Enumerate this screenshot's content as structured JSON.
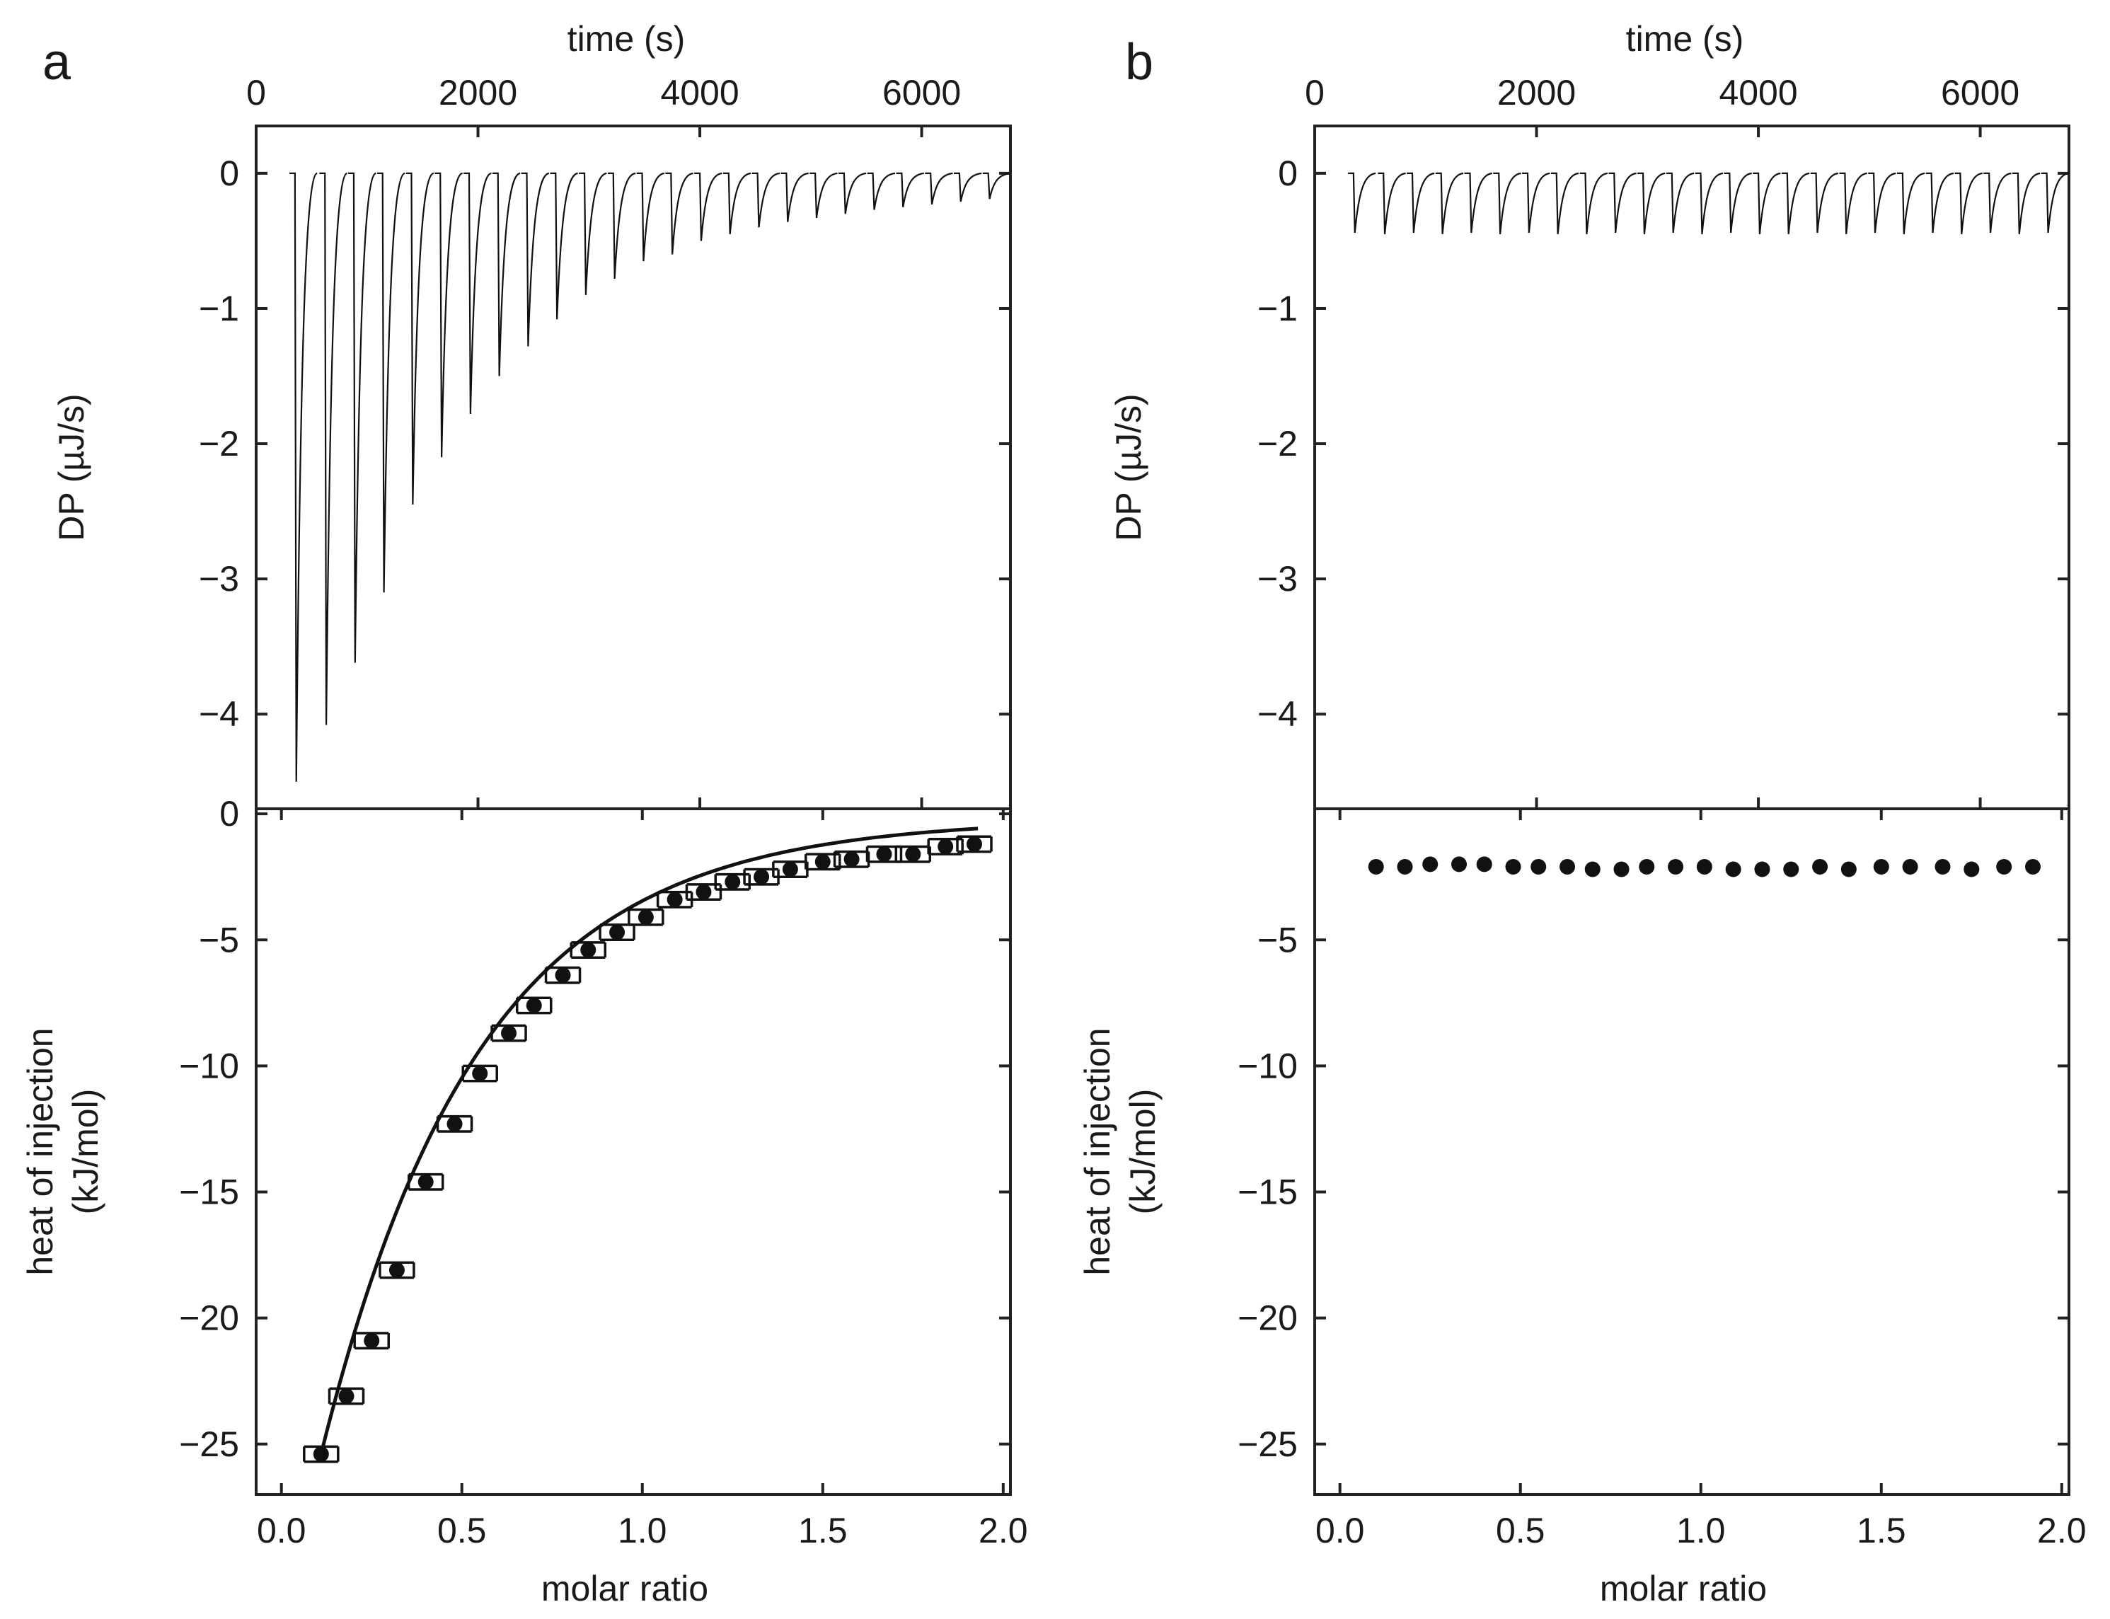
{
  "chart_data": [
    {
      "panel": "a",
      "panel_label": "a",
      "type": "multi-panel",
      "top": {
        "type": "line",
        "xlabel": "time (s)",
        "ylabel": "DP (µJ/s)",
        "xlim": [
          0,
          6800
        ],
        "ylim": [
          -4.7,
          0.35
        ],
        "xticks": [
          "0",
          "2000",
          "4000",
          "6000"
        ],
        "xtick_values": [
          0,
          2000,
          4000,
          6000
        ],
        "yticks": [
          "0",
          "−1",
          "−2",
          "−3",
          "−4"
        ],
        "ytick_values": [
          0,
          -1,
          -2,
          -3,
          -4
        ],
        "injection_times": [
          350,
          620,
          880,
          1140,
          1400,
          1660,
          1920,
          2180,
          2440,
          2700,
          2960,
          3220,
          3480,
          3740,
          4000,
          4260,
          4520,
          4780,
          5040,
          5300,
          5560,
          5820,
          6080,
          6340,
          6600
        ],
        "peak_minima": [
          -4.5,
          -4.08,
          -3.62,
          -3.1,
          -2.45,
          -2.1,
          -1.78,
          -1.5,
          -1.28,
          -1.08,
          -0.9,
          -0.78,
          -0.65,
          -0.6,
          -0.5,
          -0.45,
          -0.4,
          -0.36,
          -0.33,
          -0.3,
          -0.27,
          -0.25,
          -0.23,
          -0.21,
          -0.19
        ]
      },
      "bottom": {
        "type": "scatter",
        "xlabel": "molar ratio",
        "ylabel": "heat of injection",
        "ylabel_units": "(kJ/mol)",
        "xlim": [
          -0.07,
          2.02
        ],
        "ylim": [
          -27,
          0.2
        ],
        "xticks": [
          "0.0",
          "0.5",
          "1.0",
          "1.5",
          "2.0"
        ],
        "xtick_values": [
          0,
          0.5,
          1,
          1.5,
          2
        ],
        "yticks": [
          "0",
          "−5",
          "−10",
          "−15",
          "−20",
          "−25"
        ],
        "ytick_values": [
          0,
          -5,
          -10,
          -15,
          -20,
          -25
        ],
        "x": [
          0.11,
          0.18,
          0.25,
          0.32,
          0.4,
          0.48,
          0.55,
          0.63,
          0.7,
          0.78,
          0.85,
          0.93,
          1.01,
          1.09,
          1.17,
          1.25,
          1.33,
          1.41,
          1.5,
          1.58,
          1.67,
          1.75,
          1.84,
          1.92
        ],
        "y": [
          -25.4,
          -23.1,
          -20.9,
          -18.1,
          -14.6,
          -12.3,
          -10.3,
          -8.7,
          -7.6,
          -6.4,
          -5.4,
          -4.7,
          -4.1,
          -3.4,
          -3.1,
          -2.7,
          -2.5,
          -2.2,
          -1.9,
          -1.8,
          -1.6,
          -1.6,
          -1.3,
          -1.2
        ],
        "error": [
          0.3,
          0.3,
          0.3,
          0.3,
          0.3,
          0.3,
          0.3,
          0.3,
          0.3,
          0.3,
          0.3,
          0.3,
          0.3,
          0.3,
          0.3,
          0.3,
          0.3,
          0.3,
          0.3,
          0.3,
          0.3,
          0.3,
          0.3,
          0.3
        ],
        "fit": {
          "x0": 0.11,
          "x1": 1.93,
          "y0": -25.4,
          "y_inf": -0.2,
          "k": 2.3
        }
      }
    },
    {
      "panel": "b",
      "panel_label": "b",
      "type": "multi-panel",
      "top": {
        "type": "line",
        "xlabel": "time (s)",
        "ylabel": "DP (µJ/s)",
        "xlim": [
          0,
          6800
        ],
        "ylim": [
          -4.7,
          0.35
        ],
        "xticks": [
          "0",
          "2000",
          "4000",
          "6000"
        ],
        "xtick_values": [
          0,
          2000,
          4000,
          6000
        ],
        "yticks": [
          "0",
          "−1",
          "−2",
          "−3",
          "−4"
        ],
        "ytick_values": [
          0,
          -1,
          -2,
          -3,
          -4
        ],
        "injection_times": [
          350,
          620,
          880,
          1140,
          1400,
          1660,
          1920,
          2180,
          2440,
          2700,
          2960,
          3220,
          3480,
          3740,
          4000,
          4260,
          4520,
          4780,
          5040,
          5300,
          5560,
          5820,
          6080,
          6340,
          6600
        ],
        "peak_minima": [
          -0.44,
          -0.45,
          -0.44,
          -0.45,
          -0.44,
          -0.45,
          -0.44,
          -0.45,
          -0.45,
          -0.44,
          -0.45,
          -0.44,
          -0.45,
          -0.44,
          -0.45,
          -0.45,
          -0.44,
          -0.45,
          -0.44,
          -0.45,
          -0.44,
          -0.45,
          -0.44,
          -0.45,
          -0.44
        ]
      },
      "bottom": {
        "type": "scatter",
        "xlabel": "molar ratio",
        "ylabel": "heat of injection",
        "ylabel_units": "(kJ/mol)",
        "xlim": [
          -0.07,
          2.02
        ],
        "ylim": [
          -27,
          0.2
        ],
        "xticks": [
          "0.0",
          "0.5",
          "1.0",
          "1.5",
          "2.0"
        ],
        "xtick_values": [
          0,
          0.5,
          1,
          1.5,
          2
        ],
        "yticks": [
          "−5",
          "−10",
          "−15",
          "−20",
          "−25"
        ],
        "ytick_values": [
          -5,
          -10,
          -15,
          -20,
          -25
        ],
        "x": [
          0.1,
          0.18,
          0.25,
          0.33,
          0.4,
          0.48,
          0.55,
          0.63,
          0.7,
          0.78,
          0.85,
          0.93,
          1.01,
          1.09,
          1.17,
          1.25,
          1.33,
          1.41,
          1.5,
          1.58,
          1.67,
          1.75,
          1.84,
          1.92
        ],
        "y": [
          -2.1,
          -2.1,
          -2.0,
          -2.0,
          -2.0,
          -2.1,
          -2.1,
          -2.1,
          -2.2,
          -2.2,
          -2.1,
          -2.1,
          -2.1,
          -2.2,
          -2.2,
          -2.2,
          -2.1,
          -2.2,
          -2.1,
          -2.1,
          -2.1,
          -2.2,
          -2.1,
          -2.1
        ]
      }
    }
  ]
}
